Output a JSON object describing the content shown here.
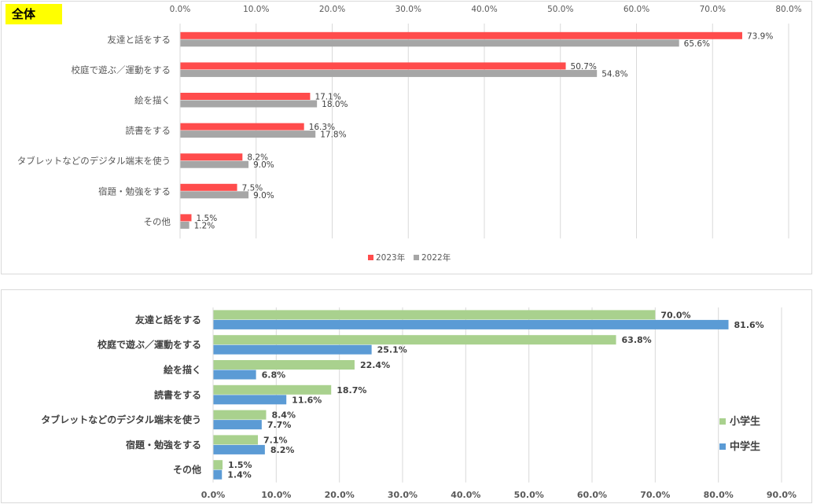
{
  "chart_data": [
    {
      "type": "bar",
      "orientation": "horizontal",
      "badge": "全体",
      "categories": [
        "友達と話をする",
        "校庭で遊ぶ／運動をする",
        "絵を描く",
        "読書をする",
        "タブレットなどのデジタル端末を使う",
        "宿題・勉強をする",
        "その他"
      ],
      "series": [
        {
          "name": "2023年",
          "color": "#ff4c4c",
          "values": [
            73.9,
            50.7,
            17.1,
            16.3,
            8.2,
            7.5,
            1.5
          ]
        },
        {
          "name": "2022年",
          "color": "#a6a6a6",
          "values": [
            65.6,
            54.8,
            18.0,
            17.8,
            9.0,
            9.0,
            1.2
          ]
        }
      ],
      "xlim": [
        0,
        80
      ],
      "ticks": [
        "0.0%",
        "10.0%",
        "20.0%",
        "30.0%",
        "40.0%",
        "50.0%",
        "60.0%",
        "70.0%",
        "80.0%"
      ],
      "axis_position": "top",
      "legend_position": "bottom",
      "grid": true
    },
    {
      "type": "bar",
      "orientation": "horizontal",
      "categories": [
        "友達と話をする",
        "校庭で遊ぶ／運動をする",
        "絵を描く",
        "読書をする",
        "タブレットなどのデジタル端末を使う",
        "宿題・勉強をする",
        "その他"
      ],
      "series": [
        {
          "name": "小学生",
          "color": "#a9d18e",
          "values": [
            70.0,
            63.8,
            22.4,
            18.7,
            8.4,
            7.1,
            1.5
          ]
        },
        {
          "name": "中学生",
          "color": "#5b9bd5",
          "values": [
            81.6,
            25.1,
            6.8,
            11.6,
            7.7,
            8.2,
            1.4
          ]
        }
      ],
      "xlim": [
        0,
        90
      ],
      "ticks": [
        "0.0%",
        "10.0%",
        "20.0%",
        "30.0%",
        "40.0%",
        "50.0%",
        "60.0%",
        "70.0%",
        "80.0%",
        "90.0%"
      ],
      "axis_position": "bottom",
      "legend_position": "right",
      "grid": true
    }
  ]
}
